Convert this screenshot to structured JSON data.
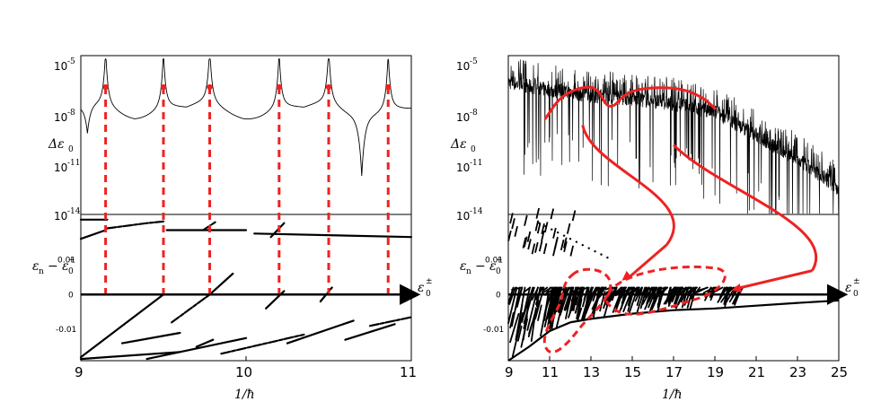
{
  "chart_data": [
    {
      "panel": "left",
      "type": "line",
      "top": {
        "ylabel": "Δε",
        "ylabel_sub": "0",
        "yscale": "log",
        "yticks": [
          {
            "label": "10",
            "exp": "-5",
            "value": 1e-05
          },
          {
            "label": "10",
            "exp": "-8",
            "value": 1e-08
          },
          {
            "label": "10",
            "exp": "-11",
            "value": 1e-11
          },
          {
            "label": "10",
            "exp": "-14",
            "value": 1e-14
          }
        ],
        "ylim_log10": [
          -14,
          -4.4
        ],
        "xlim": [
          9,
          11
        ],
        "peaks_x": [
          9.15,
          9.5,
          9.78,
          10.2,
          10.5,
          10.86
        ],
        "dips": [
          {
            "x": 10.7,
            "log10": -11.5
          },
          {
            "x": 9.04,
            "log10": -9.7
          }
        ],
        "baseline_log10": -8.0,
        "markers_log10": -6.3
      },
      "bottom": {
        "ylabel": "ε",
        "ylabel_sub": "n",
        "ylabel_minus": "− ε",
        "ylabel_sub2": "0",
        "ylabel_sup2": "+",
        "yticks": [
          {
            "label": "0.01",
            "value": 0.01
          },
          {
            "label": "0",
            "value": 0
          },
          {
            "label": "-0.01",
            "value": -0.01
          }
        ],
        "ylim": [
          -0.019,
          0.023
        ],
        "axis_arrow_label": "ε",
        "axis_arrow_sub": "0",
        "axis_arrow_sup": "±",
        "series": [
          {
            "x": [
              9.0,
              9.08,
              9.16
            ],
            "y": [
              0.0215,
              0.0215,
              0.0215
            ]
          },
          {
            "x": [
              9.0,
              9.15
            ],
            "y": [
              0.016,
              0.0185
            ]
          },
          {
            "x": [
              9.16,
              9.4,
              9.5
            ],
            "y": [
              0.019,
              0.0205,
              0.021
            ]
          },
          {
            "x": [
              9.52,
              10.0
            ],
            "y": [
              0.0185,
              0.0185
            ]
          },
          {
            "x": [
              10.05,
              11.0
            ],
            "y": [
              0.0175,
              0.0165
            ]
          },
          {
            "x": [
              9.74,
              9.82
            ],
            "y": [
              0.0185,
              0.021
            ]
          },
          {
            "x": [
              10.15,
              10.23
            ],
            "y": [
              0.0165,
              0.0205
            ]
          },
          {
            "x": [
              9.0,
              9.5
            ],
            "y": [
              -0.018,
              0.0
            ]
          },
          {
            "x": [
              9.55,
              9.78
            ],
            "y": [
              -0.008,
              0.0
            ]
          },
          {
            "x": [
              9.78,
              9.92
            ],
            "y": [
              0.0,
              0.006
            ]
          },
          {
            "x": [
              10.12,
              10.23
            ],
            "y": [
              -0.004,
              0.001
            ]
          },
          {
            "x": [
              10.45,
              10.52
            ],
            "y": [
              -0.002,
              0.002
            ]
          },
          {
            "x": [
              9.0,
              9.6
            ],
            "y": [
              -0.0185,
              -0.0165
            ]
          },
          {
            "x": [
              9.4,
              10.0
            ],
            "y": [
              -0.0185,
              -0.0125
            ]
          },
          {
            "x": [
              9.85,
              10.35
            ],
            "y": [
              -0.017,
              -0.0115
            ]
          },
          {
            "x": [
              10.25,
              10.65
            ],
            "y": [
              -0.014,
              -0.0075
            ]
          },
          {
            "x": [
              10.6,
              10.9
            ],
            "y": [
              -0.013,
              -0.0085
            ]
          },
          {
            "x": [
              10.75,
              11.0
            ],
            "y": [
              -0.009,
              -0.0065
            ]
          },
          {
            "x": [
              9.25,
              9.6
            ],
            "y": [
              -0.014,
              -0.011
            ]
          },
          {
            "x": [
              9.7,
              9.8
            ],
            "y": [
              -0.015,
              -0.013
            ]
          }
        ]
      },
      "red_dashed_x": [
        9.15,
        9.5,
        9.78,
        10.2,
        10.5,
        10.86
      ],
      "xlabel": "1/ħ",
      "xticks": [
        {
          "label": "9",
          "value": 9
        },
        {
          "label": "10",
          "value": 10
        },
        {
          "label": "11",
          "value": 11
        }
      ]
    },
    {
      "panel": "right",
      "type": "line",
      "top": {
        "ylabel": "Δε",
        "ylabel_sub": "0",
        "yscale": "log",
        "yticks": [
          {
            "label": "10",
            "exp": "-5",
            "value": 1e-05
          },
          {
            "label": "10",
            "exp": "-8",
            "value": 1e-08
          },
          {
            "label": "10",
            "exp": "-11",
            "value": 1e-11
          },
          {
            "label": "10",
            "exp": "-14",
            "value": 1e-14
          }
        ],
        "ylim_log10": [
          -14,
          -4.4
        ],
        "xlim": [
          9,
          25
        ],
        "envelope_x": [
          9,
          11,
          13,
          15,
          17,
          19,
          20,
          21,
          22,
          23,
          24,
          25
        ],
        "envelope_log10": [
          -6.0,
          -6.5,
          -6.8,
          -7.0,
          -7.3,
          -7.8,
          -8.5,
          -9.2,
          -10.0,
          -10.7,
          -11.5,
          -12.5
        ],
        "red_curve_x": [
          10.8,
          11.5,
          12.5,
          13.3,
          13.9,
          14.7,
          16.0,
          17.5,
          18.5,
          19.0
        ],
        "red_curve_log10": [
          -8.2,
          -6.9,
          -6.3,
          -6.3,
          -7.8,
          -6.6,
          -6.3,
          -6.4,
          -7.0,
          -7.6
        ]
      },
      "bottom": {
        "ylabel": "ε",
        "ylabel_sub": "n",
        "ylabel_minus": "− ε",
        "ylabel_sub2": "0",
        "ylabel_sup2": "+",
        "yticks": [
          {
            "label": "0.01",
            "value": 0.01
          },
          {
            "label": "0",
            "value": 0
          },
          {
            "label": "-0.01",
            "value": -0.01
          }
        ],
        "ylim": [
          -0.019,
          0.023
        ],
        "axis_arrow_label": "ε",
        "axis_arrow_sub": "0",
        "axis_arrow_sup": "±",
        "envelope_x": [
          9,
          10,
          11,
          12,
          13,
          15,
          17,
          19,
          21,
          23,
          25
        ],
        "envelope_y": [
          -0.019,
          -0.015,
          -0.0105,
          -0.008,
          -0.007,
          -0.0055,
          -0.0045,
          -0.004,
          -0.0032,
          -0.0024,
          -0.0017
        ]
      },
      "red_loops": [
        {
          "cx": 12.8,
          "cy": 0.0005,
          "note": "dashed loop around resonance cluster near 1/ħ≈13"
        },
        {
          "cx": 16.8,
          "cy": 0.001,
          "note": "dashed loop around resonance cluster near 1/ħ≈17"
        }
      ],
      "red_arrows": [
        {
          "from": [
            12.6,
            -8.6
          ],
          "to": [
            14.5,
            0.004
          ]
        },
        {
          "from": [
            17.0,
            -9.8
          ],
          "to": [
            19.8,
            0.0012
          ]
        }
      ],
      "xlabel": "1/ħ",
      "xticks": [
        {
          "label": "9",
          "value": 9
        },
        {
          "label": "11",
          "value": 11
        },
        {
          "label": "13",
          "value": 13
        },
        {
          "label": "15",
          "value": 15
        },
        {
          "label": "17",
          "value": 17
        },
        {
          "label": "19",
          "value": 19
        },
        {
          "label": "21",
          "value": 21
        },
        {
          "label": "23",
          "value": 23
        },
        {
          "label": "25",
          "value": 25
        }
      ]
    }
  ],
  "colors": {
    "axis": "#000000",
    "curve": "#000000",
    "highlight": "#ee2222"
  }
}
